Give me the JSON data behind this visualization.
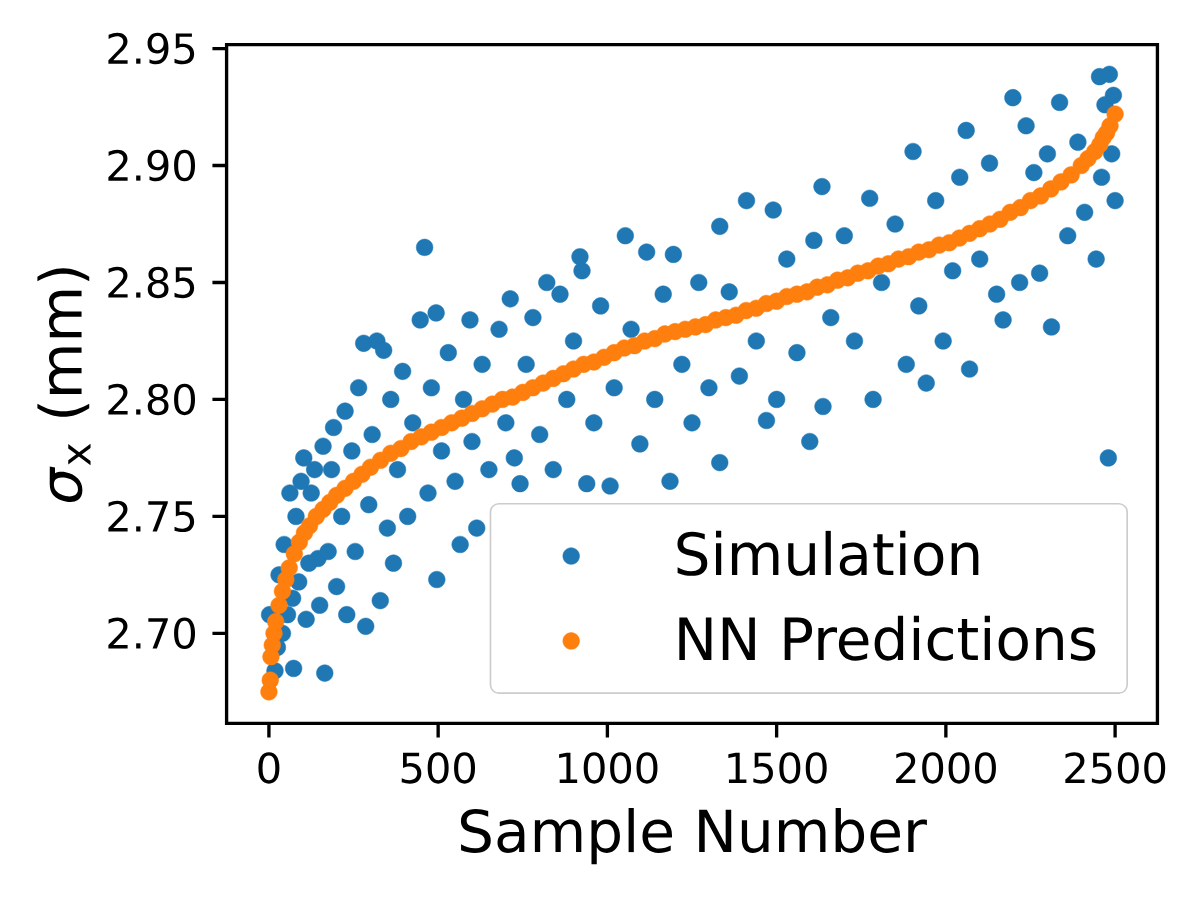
{
  "chart_data": {
    "type": "scatter",
    "xlabel": "Sample Number",
    "ylabel": "*σ*$_{x}$ (mm)",
    "xlim": [
      -125,
      2625
    ],
    "ylim": [
      2.6615,
      2.9517
    ],
    "xticks": [
      0,
      500,
      1000,
      1500,
      2000,
      2500
    ],
    "yticks": [
      {
        "value": 2.7,
        "label": "2.70"
      },
      2.75,
      {
        "value": 2.8,
        "label": "2.80"
      },
      2.85,
      {
        "value": 2.9,
        "label": "2.90"
      },
      2.95
    ],
    "legend": "bottom right",
    "marker": "circle",
    "series": [
      {
        "name": "Simulation",
        "color": "#1f77b4",
        "x": [
          2,
          18,
          25,
          30,
          40,
          45,
          55,
          62,
          70,
          73,
          80,
          88,
          95,
          103,
          110,
          118,
          125,
          135,
          145,
          150,
          160,
          165,
          175,
          185,
          191,
          200,
          215,
          225,
          230,
          245,
          255,
          265,
          280,
          286,
          295,
          305,
          319,
          329,
          339,
          350,
          360,
          368,
          380,
          395,
          410,
          425,
          447,
          460,
          470,
          480,
          494,
          496,
          510,
          530,
          550,
          565,
          575,
          594,
          600,
          614,
          630,
          650,
          680,
          700,
          713,
          725,
          742,
          760,
          780,
          800,
          821,
          840,
          860,
          880,
          900,
          919,
          925,
          939,
          960,
          980,
          1008,
          1020,
          1053,
          1070,
          1096,
          1116,
          1140,
          1165,
          1185,
          1195,
          1220,
          1250,
          1270,
          1300,
          1332,
          1332,
          1360,
          1390,
          1411,
          1440,
          1470,
          1490,
          1500,
          1530,
          1560,
          1598,
          1610,
          1634,
          1637,
          1660,
          1700,
          1730,
          1775,
          1785,
          1810,
          1850,
          1883,
          1903,
          1920,
          1942,
          1970,
          1992,
          2020,
          2041,
          2060,
          2070,
          2100,
          2129,
          2150,
          2169,
          2198,
          2218,
          2237,
          2260,
          2277,
          2300,
          2312,
          2336,
          2360,
          2390,
          2410,
          2444,
          2454,
          2460,
          2470,
          2480,
          2483,
          2490,
          2495,
          2500
        ],
        "values": [
          2.708,
          2.684,
          2.694,
          2.725,
          2.7,
          2.738,
          2.708,
          2.76,
          2.715,
          2.685,
          2.75,
          2.722,
          2.765,
          2.775,
          2.706,
          2.73,
          2.76,
          2.77,
          2.732,
          2.712,
          2.78,
          2.683,
          2.735,
          2.77,
          2.788,
          2.72,
          2.75,
          2.795,
          2.708,
          2.778,
          2.735,
          2.805,
          2.824,
          2.703,
          2.755,
          2.785,
          2.825,
          2.714,
          2.821,
          2.745,
          2.8,
          2.73,
          2.77,
          2.812,
          2.75,
          2.79,
          2.834,
          2.865,
          2.76,
          2.805,
          2.837,
          2.723,
          2.778,
          2.82,
          2.765,
          2.738,
          2.8,
          2.834,
          2.782,
          2.745,
          2.815,
          2.77,
          2.83,
          2.79,
          2.843,
          2.775,
          2.764,
          2.815,
          2.835,
          2.785,
          2.85,
          2.77,
          2.845,
          2.8,
          2.825,
          2.861,
          2.855,
          2.764,
          2.79,
          2.84,
          2.763,
          2.805,
          2.87,
          2.83,
          2.781,
          2.863,
          2.8,
          2.845,
          2.765,
          2.862,
          2.815,
          2.79,
          2.85,
          2.805,
          2.874,
          2.773,
          2.846,
          2.81,
          2.885,
          2.825,
          2.791,
          2.881,
          2.8,
          2.86,
          2.82,
          2.782,
          2.868,
          2.891,
          2.797,
          2.835,
          2.87,
          2.825,
          2.886,
          2.8,
          2.85,
          2.875,
          2.815,
          2.906,
          2.84,
          2.807,
          2.885,
          2.825,
          2.855,
          2.895,
          2.915,
          2.813,
          2.86,
          2.901,
          2.845,
          2.834,
          2.929,
          2.85,
          2.917,
          2.897,
          2.854,
          2.905,
          2.831,
          2.927,
          2.87,
          2.91,
          2.88,
          2.86,
          2.938,
          2.895,
          2.926,
          2.775,
          2.939,
          2.905,
          2.93,
          2.885
        ]
      },
      {
        "name": "NN Predictions",
        "color": "#ff7f0e",
        "x": [
          0,
          4,
          6,
          10,
          15,
          20,
          30,
          40,
          50,
          60,
          75,
          90,
          105,
          120,
          140,
          160,
          180,
          200,
          225,
          250,
          275,
          300,
          330,
          360,
          390,
          420,
          450,
          480,
          510,
          540,
          570,
          600,
          630,
          660,
          690,
          720,
          750,
          780,
          810,
          840,
          870,
          900,
          930,
          960,
          990,
          1020,
          1050,
          1080,
          1110,
          1140,
          1170,
          1200,
          1230,
          1260,
          1290,
          1320,
          1350,
          1380,
          1410,
          1440,
          1470,
          1500,
          1530,
          1560,
          1590,
          1620,
          1650,
          1680,
          1710,
          1740,
          1770,
          1800,
          1830,
          1860,
          1890,
          1920,
          1950,
          1980,
          2010,
          2040,
          2070,
          2100,
          2130,
          2160,
          2190,
          2220,
          2250,
          2280,
          2310,
          2340,
          2370,
          2400,
          2420,
          2440,
          2455,
          2465,
          2475,
          2485,
          2500
        ],
        "values": [
          2.675,
          2.68,
          2.69,
          2.695,
          2.7,
          2.705,
          2.712,
          2.718,
          2.723,
          2.728,
          2.734,
          2.739,
          2.743,
          2.746,
          2.75,
          2.753,
          2.756,
          2.759,
          2.762,
          2.765,
          2.768,
          2.771,
          2.774,
          2.777,
          2.779,
          2.782,
          2.784,
          2.786,
          2.788,
          2.79,
          2.792,
          2.794,
          2.796,
          2.798,
          2.8,
          2.801,
          2.803,
          2.805,
          2.807,
          2.809,
          2.811,
          2.813,
          2.815,
          2.816,
          2.818,
          2.82,
          2.822,
          2.823,
          2.825,
          2.826,
          2.828,
          2.829,
          2.83,
          2.831,
          2.832,
          2.834,
          2.835,
          2.836,
          2.838,
          2.839,
          2.841,
          2.842,
          2.844,
          2.845,
          2.846,
          2.848,
          2.849,
          2.851,
          2.852,
          2.854,
          2.855,
          2.857,
          2.858,
          2.86,
          2.861,
          2.863,
          2.864,
          2.866,
          2.867,
          2.869,
          2.871,
          2.873,
          2.875,
          2.877,
          2.88,
          2.882,
          2.885,
          2.887,
          2.89,
          2.893,
          2.896,
          2.9,
          2.903,
          2.906,
          2.909,
          2.912,
          2.914,
          2.917,
          2.922
        ]
      }
    ]
  }
}
